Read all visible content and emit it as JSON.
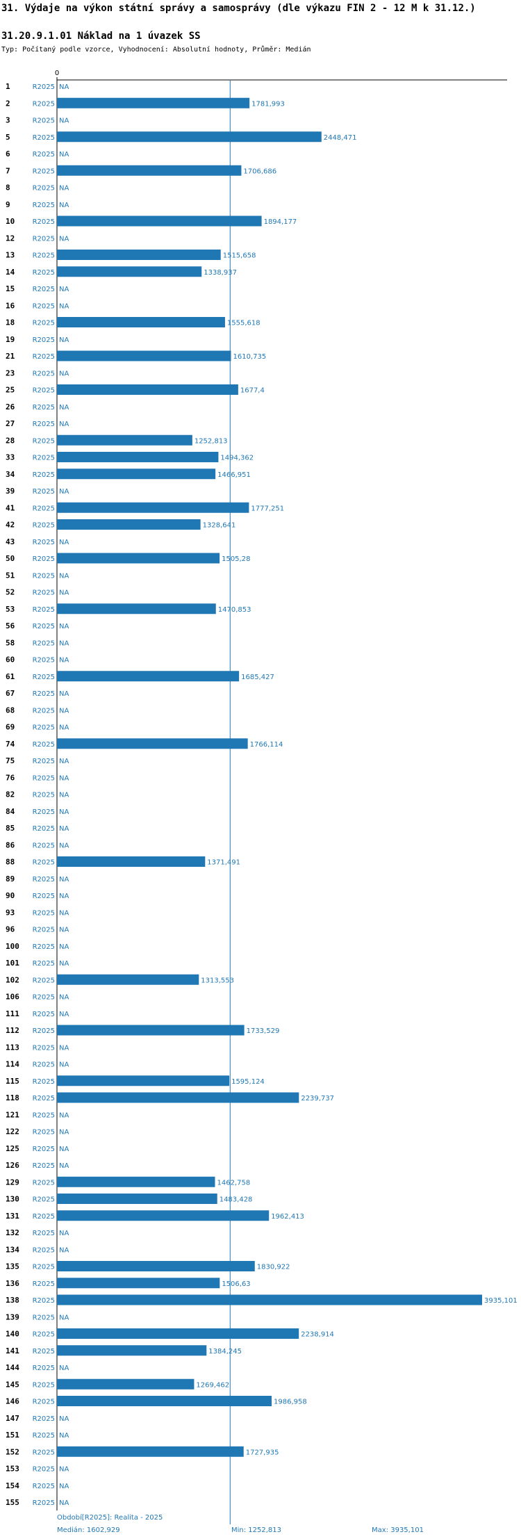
{
  "header": {
    "title": "31. Výdaje na výkon státní správy a samosprávy (dle výkazu FIN 2 - 12 M k 31.12.)",
    "subtitle": "31.20.9.1.01 Náklad na 1 úvazek SS",
    "type_line": "Typ: Počítaný podle vzorce, Vyhodnocení: Absolutní hodnoty, Průměr: Medián"
  },
  "colors": {
    "bar": "#1f77b4",
    "median_line": "#1f77b4",
    "axis": "#000000",
    "text": "#000000"
  },
  "chart_data": {
    "type": "bar",
    "orientation": "horizontal",
    "period": "R2025",
    "na_label": "NA",
    "xlim": [
      0,
      3935.101
    ],
    "x_tick": "0",
    "median": 1602.929,
    "rows": [
      {
        "id": "1",
        "value": null
      },
      {
        "id": "2",
        "value": 1781.993,
        "label": "1781,993"
      },
      {
        "id": "3",
        "value": null
      },
      {
        "id": "5",
        "value": 2448.471,
        "label": "2448,471"
      },
      {
        "id": "6",
        "value": null
      },
      {
        "id": "7",
        "value": 1706.686,
        "label": "1706,686"
      },
      {
        "id": "8",
        "value": null
      },
      {
        "id": "9",
        "value": null
      },
      {
        "id": "10",
        "value": 1894.177,
        "label": "1894,177"
      },
      {
        "id": "12",
        "value": null
      },
      {
        "id": "13",
        "value": 1515.658,
        "label": "1515,658"
      },
      {
        "id": "14",
        "value": 1338.937,
        "label": "1338,937"
      },
      {
        "id": "15",
        "value": null
      },
      {
        "id": "16",
        "value": null
      },
      {
        "id": "18",
        "value": 1555.618,
        "label": "1555,618"
      },
      {
        "id": "19",
        "value": null
      },
      {
        "id": "21",
        "value": 1610.735,
        "label": "1610,735"
      },
      {
        "id": "23",
        "value": null
      },
      {
        "id": "25",
        "value": 1677.4,
        "label": "1677,4"
      },
      {
        "id": "26",
        "value": null
      },
      {
        "id": "27",
        "value": null
      },
      {
        "id": "28",
        "value": 1252.813,
        "label": "1252,813"
      },
      {
        "id": "33",
        "value": 1494.362,
        "label": "1494,362"
      },
      {
        "id": "34",
        "value": 1466.951,
        "label": "1466,951"
      },
      {
        "id": "39",
        "value": null
      },
      {
        "id": "41",
        "value": 1777.251,
        "label": "1777,251"
      },
      {
        "id": "42",
        "value": 1328.641,
        "label": "1328,641"
      },
      {
        "id": "43",
        "value": null
      },
      {
        "id": "50",
        "value": 1505.28,
        "label": "1505,28"
      },
      {
        "id": "51",
        "value": null
      },
      {
        "id": "52",
        "value": null
      },
      {
        "id": "53",
        "value": 1470.853,
        "label": "1470,853"
      },
      {
        "id": "56",
        "value": null
      },
      {
        "id": "58",
        "value": null
      },
      {
        "id": "60",
        "value": null
      },
      {
        "id": "61",
        "value": 1685.427,
        "label": "1685,427"
      },
      {
        "id": "67",
        "value": null
      },
      {
        "id": "68",
        "value": null
      },
      {
        "id": "69",
        "value": null
      },
      {
        "id": "74",
        "value": 1766.114,
        "label": "1766,114"
      },
      {
        "id": "75",
        "value": null
      },
      {
        "id": "76",
        "value": null
      },
      {
        "id": "82",
        "value": null
      },
      {
        "id": "84",
        "value": null
      },
      {
        "id": "85",
        "value": null
      },
      {
        "id": "86",
        "value": null
      },
      {
        "id": "88",
        "value": 1371.491,
        "label": "1371,491"
      },
      {
        "id": "89",
        "value": null
      },
      {
        "id": "90",
        "value": null
      },
      {
        "id": "93",
        "value": null
      },
      {
        "id": "96",
        "value": null
      },
      {
        "id": "100",
        "value": null
      },
      {
        "id": "101",
        "value": null
      },
      {
        "id": "102",
        "value": 1313.553,
        "label": "1313,553"
      },
      {
        "id": "106",
        "value": null
      },
      {
        "id": "111",
        "value": null
      },
      {
        "id": "112",
        "value": 1733.529,
        "label": "1733,529"
      },
      {
        "id": "113",
        "value": null
      },
      {
        "id": "114",
        "value": null
      },
      {
        "id": "115",
        "value": 1595.124,
        "label": "1595,124"
      },
      {
        "id": "118",
        "value": 2239.737,
        "label": "2239,737"
      },
      {
        "id": "121",
        "value": null
      },
      {
        "id": "122",
        "value": null
      },
      {
        "id": "125",
        "value": null
      },
      {
        "id": "126",
        "value": null
      },
      {
        "id": "129",
        "value": 1462.758,
        "label": "1462,758"
      },
      {
        "id": "130",
        "value": 1483.428,
        "label": "1483,428"
      },
      {
        "id": "131",
        "value": 1962.413,
        "label": "1962,413"
      },
      {
        "id": "132",
        "value": null
      },
      {
        "id": "134",
        "value": null
      },
      {
        "id": "135",
        "value": 1830.922,
        "label": "1830,922"
      },
      {
        "id": "136",
        "value": 1506.63,
        "label": "1506,63"
      },
      {
        "id": "138",
        "value": 3935.101,
        "label": "3935,101"
      },
      {
        "id": "139",
        "value": null
      },
      {
        "id": "140",
        "value": 2238.914,
        "label": "2238,914"
      },
      {
        "id": "141",
        "value": 1384.245,
        "label": "1384,245"
      },
      {
        "id": "144",
        "value": null
      },
      {
        "id": "145",
        "value": 1269.462,
        "label": "1269,462"
      },
      {
        "id": "146",
        "value": 1986.958,
        "label": "1986,958"
      },
      {
        "id": "147",
        "value": null
      },
      {
        "id": "151",
        "value": null
      },
      {
        "id": "152",
        "value": 1727.935,
        "label": "1727,935"
      },
      {
        "id": "153",
        "value": null
      },
      {
        "id": "154",
        "value": null
      },
      {
        "id": "155",
        "value": null
      }
    ],
    "footer": {
      "period_note": "Období[R2025]: Realita - 2025",
      "median_text": "Medián: 1602,929",
      "min_text": "Min: 1252,813",
      "max_text": "Max: 3935,101"
    }
  }
}
